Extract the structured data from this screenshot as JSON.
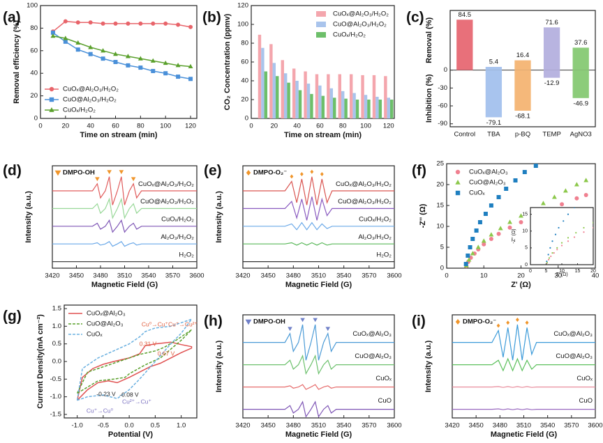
{
  "chart_data": [
    {
      "type": "line",
      "panel": "(a)",
      "xlabel": "Time on stream (min)",
      "ylabel": "Removal efficiency (%)",
      "x": [
        10,
        20,
        30,
        40,
        50,
        60,
        70,
        80,
        90,
        100,
        110,
        120
      ],
      "series": [
        {
          "name": "CuOₓ@Al₂O₃/H₂O₂",
          "color": "#e8646a",
          "marker": "circle",
          "values": [
            77,
            86,
            85,
            85,
            84,
            84,
            84,
            84,
            84,
            84,
            83,
            81
          ]
        },
        {
          "name": "CuO@Al₂O₃/H₂O₂",
          "color": "#4a90d9",
          "marker": "square",
          "values": [
            76,
            68,
            61,
            57,
            53,
            50,
            47,
            45,
            42,
            40,
            37,
            35
          ]
        },
        {
          "name": "CuOₓ/H₂O₂",
          "color": "#5aa02c",
          "marker": "triangle",
          "values": [
            73,
            71,
            67,
            63,
            60,
            57,
            55,
            53,
            51,
            49,
            47,
            46
          ]
        }
      ],
      "xlim": [
        0,
        125
      ],
      "xticks": [
        0,
        20,
        40,
        60,
        80,
        100,
        120
      ],
      "ylim": [
        0,
        100
      ],
      "yticks": [
        0,
        20,
        40,
        60,
        80,
        100
      ],
      "legend": "lower left"
    },
    {
      "type": "bar",
      "panel": "(b)",
      "xlabel": "Time on stream (min)",
      "ylabel": "CO₂ Concentration (ppmv)",
      "x": [
        10,
        20,
        30,
        40,
        50,
        60,
        70,
        80,
        90,
        100,
        110,
        120
      ],
      "series": [
        {
          "name": "CuOₓ@Al₂O₃/H₂O₂",
          "color": "#f4a6ad",
          "values": [
            89,
            79,
            62,
            53,
            50,
            47,
            47,
            47,
            47,
            46,
            46,
            45
          ]
        },
        {
          "name": "CuO@Al₂O₃/H₂O₂",
          "color": "#a9c4ec",
          "values": [
            75,
            59,
            48,
            40,
            37,
            35,
            32,
            29,
            27,
            25,
            23,
            22
          ]
        },
        {
          "name": "CuOₓ/H₂O₂",
          "color": "#6dbf6a",
          "values": [
            50,
            45,
            38,
            30,
            26,
            24,
            22,
            21,
            20,
            20,
            20,
            20
          ]
        }
      ],
      "xlim": [
        0,
        125
      ],
      "xticks": [
        0,
        20,
        40,
        60,
        80,
        100,
        120
      ],
      "ylim": [
        0,
        120
      ],
      "yticks": [
        0,
        20,
        40,
        60,
        80,
        100,
        120
      ],
      "legend": "upper right"
    },
    {
      "type": "bar",
      "panel": "(c)",
      "categories": [
        "Control",
        "TBA",
        "p-BQ",
        "TEMP",
        "AgNO3"
      ],
      "colors": [
        "#e8707a",
        "#a8c4ee",
        "#f5b87a",
        "#b8b4e0",
        "#8ccc7a"
      ],
      "series": [
        {
          "name": "Removal (%)",
          "values": [
            84.5,
            5.4,
            16.4,
            71.6,
            37.6
          ]
        },
        {
          "name": "Inhibition (%)",
          "values": [
            null,
            -79.1,
            -68.1,
            -12.9,
            -46.9
          ]
        }
      ],
      "ylim": [
        -95,
        100
      ],
      "yticks": [
        -90,
        -60,
        -30,
        0
      ]
    },
    {
      "type": "epr",
      "panel": "(d)",
      "xlabel": "Magnetic Field (G)",
      "ylabel": "Intensity (a.u.)",
      "annotation": "DMPO-OH",
      "x": [
        3420,
        3470,
        3476,
        3480,
        3486,
        3491,
        3495,
        3501,
        3506,
        3510,
        3516,
        3521,
        3525,
        3531,
        3600
      ],
      "series": [
        {
          "name": "CuOₓ@Al₂O₃/H₂O₂",
          "color": "#e05b5b",
          "values": [
            0,
            0,
            6,
            -6,
            0,
            12,
            -12,
            0,
            12,
            -12,
            0,
            6,
            -6,
            0,
            0
          ]
        },
        {
          "name": "CuO@Al₂O₃/H₂O₂",
          "color": "#98d898",
          "values": [
            0,
            0,
            4,
            -4,
            0,
            8,
            -8,
            0,
            8,
            -8,
            0,
            4,
            -4,
            0,
            0
          ]
        },
        {
          "name": "CuOₓ/H₂O₂",
          "color": "#7e55b5",
          "values": [
            0,
            0,
            2.5,
            -2.5,
            0,
            5,
            -5,
            0,
            5,
            -5,
            0,
            2.5,
            -2.5,
            0,
            0
          ]
        },
        {
          "name": "Al₂O₃/H₂O₂",
          "color": "#6aa8e8",
          "values": [
            0,
            0,
            1,
            -1,
            0,
            2,
            -2,
            0,
            2,
            -2,
            0,
            1,
            -1,
            0,
            0
          ]
        },
        {
          "name": "H₂O₂",
          "color": "#444444",
          "values": [
            0,
            0,
            0,
            0,
            0,
            0,
            0,
            0,
            0,
            0,
            0,
            0,
            0,
            0,
            0
          ]
        }
      ],
      "xlim": [
        3420,
        3600
      ],
      "xticks": [
        3420,
        3450,
        3480,
        3510,
        3540,
        3570,
        3600
      ]
    },
    {
      "type": "epr",
      "panel": "(e)",
      "xlabel": "Magnetic Field (G)",
      "ylabel": "Intensity (a.u.)",
      "annotation": "DMPO-O₂⁻",
      "x": [
        3420,
        3470,
        3478,
        3484,
        3490,
        3496,
        3502,
        3508,
        3514,
        3520,
        3526,
        3600
      ],
      "series": [
        {
          "name": "CuOₓ@Al₂O₃/H₂O₂",
          "color": "#d9534f",
          "values": [
            0,
            0,
            4,
            -5,
            5,
            -6,
            6,
            -6,
            5,
            -5,
            0,
            0
          ]
        },
        {
          "name": "CuO@Al₂O₃/H₂O₂",
          "color": "#8a5bc0",
          "values": [
            0,
            0,
            3,
            -4,
            4,
            -5,
            5,
            -5,
            4,
            -3,
            0,
            0
          ]
        },
        {
          "name": "CuOₓ/H₂O₂",
          "color": "#6aa8e8",
          "values": [
            0,
            0,
            1,
            -1.5,
            1.5,
            -1.5,
            1.5,
            -1.5,
            1,
            -1,
            0,
            0
          ]
        },
        {
          "name": "Al₂O₃/H₂O₂",
          "color": "#59b859",
          "values": [
            0,
            0,
            0.5,
            -0.5,
            0.5,
            -0.5,
            0.5,
            -0.5,
            0.5,
            -0.5,
            0,
            0
          ]
        },
        {
          "name": "H₂O₂",
          "color": "#333333",
          "values": [
            0,
            0,
            0,
            0,
            0,
            0,
            0,
            0,
            0,
            0,
            0,
            0
          ]
        }
      ],
      "xlim": [
        3420,
        3600
      ],
      "xticks": [
        3420,
        3450,
        3480,
        3510,
        3540,
        3570,
        3600
      ]
    },
    {
      "type": "scatter",
      "panel": "(f)",
      "xlabel": "Z' (Ω)",
      "ylabel": "-Z'' (Ω)",
      "series": [
        {
          "name": "CuOₓ@Al₂O₃",
          "color": "#f08090",
          "marker": "circle",
          "x": [
            5.3,
            5.8,
            6.5,
            7.5,
            8.5,
            10,
            12,
            14,
            17,
            20,
            23,
            27,
            31,
            35,
            37.5
          ],
          "values": [
            0.5,
            1.5,
            2.5,
            3.5,
            4.5,
            5.7,
            7,
            8.2,
            9.7,
            11,
            12.3,
            13.8,
            15.3,
            16.7,
            17.5
          ]
        },
        {
          "name": "CuO@Al₂O₃",
          "color": "#8cc84b",
          "marker": "triangle",
          "x": [
            5.3,
            6,
            7,
            8.5,
            10,
            12,
            14.5,
            17,
            20,
            23,
            26,
            29,
            32,
            35,
            37.5
          ],
          "values": [
            0.6,
            2,
            3.5,
            5,
            6.5,
            8,
            9.5,
            11,
            12.5,
            14,
            15.5,
            17,
            18.5,
            20,
            21
          ]
        },
        {
          "name": "CuOₓ",
          "color": "#1f7fc0",
          "marker": "square",
          "x": [
            5.2,
            5.7,
            6.3,
            7,
            8,
            9,
            10.5,
            12,
            14,
            16,
            18.5,
            21,
            24
          ],
          "values": [
            1,
            3,
            5,
            7,
            9,
            11,
            13,
            15,
            17,
            19,
            21,
            23,
            24.5
          ]
        }
      ],
      "xlim": [
        0,
        40
      ],
      "xticks": [
        0,
        10,
        20,
        30,
        40
      ],
      "ylim": [
        0,
        25
      ],
      "yticks": [
        0,
        5,
        10,
        15,
        20,
        25
      ],
      "legend": "upper left",
      "inset": {
        "xlabel": "Z' (Ω)",
        "ylabel": "-Z'' (Ω)",
        "xlim": [
          0,
          20
        ],
        "xticks": [
          0,
          5,
          10,
          15,
          20
        ],
        "ylim": [
          0,
          17
        ],
        "yticks": [
          0,
          5,
          10,
          15
        ]
      }
    },
    {
      "type": "line",
      "panel": "(g)",
      "xlabel": "Potential (V)",
      "ylabel": "Current Density(mA cm⁻²)",
      "series": [
        {
          "name": "CuOₓ@Al₂O₃",
          "color": "#e05050",
          "dash": false,
          "x": [
            -1,
            -0.9,
            -0.7,
            -0.5,
            -0.3,
            0,
            0.2,
            0.31,
            0.5,
            0.8,
            1.0,
            1.2,
            1.2,
            1.0,
            0.8,
            0.6,
            0.4,
            0.2,
            0,
            -0.23,
            -0.4,
            -0.6,
            -0.8,
            -1
          ],
          "values": [
            -1.1,
            -0.45,
            -0.2,
            -0.08,
            0,
            0.1,
            0.22,
            0.45,
            0.5,
            0.55,
            0.48,
            0.42,
            0.38,
            0.25,
            0.1,
            -0.05,
            -0.15,
            -0.3,
            -0.45,
            -0.6,
            -0.55,
            -0.6,
            -0.8,
            -1.1
          ]
        },
        {
          "name": "CuO@Al₂O₃",
          "color": "#5aa02c",
          "dash": true,
          "x": [
            -1,
            -0.8,
            -0.5,
            -0.2,
            0.2,
            0.5,
            0.67,
            0.9,
            1.2,
            1.0,
            0.6,
            0.3,
            0,
            -0.08,
            -0.3,
            -0.6,
            -1
          ],
          "values": [
            -0.9,
            -0.3,
            -0.15,
            0,
            0.2,
            0.3,
            0.4,
            0.6,
            0.9,
            0.6,
            0.1,
            -0.1,
            -0.35,
            -0.45,
            -0.5,
            -0.55,
            -0.9
          ]
        },
        {
          "name": "CuOₓ",
          "color": "#6ab0e0",
          "dash": true,
          "x": [
            -1,
            -0.9,
            -0.6,
            -0.3,
            0,
            0.2,
            0.31,
            0.5,
            0.8,
            1.2,
            1.0,
            0.8,
            0.5,
            0.2,
            0,
            -0.23,
            -0.5,
            -0.8,
            -1
          ],
          "values": [
            -1.1,
            -0.2,
            0.1,
            0.3,
            0.5,
            0.7,
            0.85,
            0.95,
            1.0,
            1.2,
            0.8,
            0.5,
            0,
            -0.5,
            -0.8,
            -1.05,
            -0.95,
            -1.0,
            -1.1
          ]
        }
      ],
      "annotations": [
        "0.31 V",
        "0.67 V",
        "-0.23 V",
        "-0.08 V",
        "Cu⁰→Cu⁺",
        "Cu⁺→Cu²⁺",
        "Cu²⁺→Cu⁺",
        "Cu⁺→Cu⁰"
      ],
      "xlim": [
        -1.25,
        1.3
      ],
      "xticks": [
        {
          "value": -1,
          "label": "-1.0"
        },
        {
          "value": -0.5,
          "label": "-0.5"
        },
        {
          "value": 0,
          "label": "0.0"
        },
        {
          "value": 0.5,
          "label": "0.5"
        },
        {
          "value": 1,
          "label": "1.0"
        }
      ],
      "ylim": [
        -1.6,
        1.6
      ],
      "yticks": [
        {
          "value": -1.5,
          "label": "-1.5"
        },
        {
          "value": -1,
          "label": "-1.0"
        },
        {
          "value": -0.5,
          "label": "-0.5"
        },
        {
          "value": 0,
          "label": "0.0"
        },
        {
          "value": 0.5,
          "label": "0.5"
        },
        {
          "value": 1,
          "label": "1.0"
        },
        {
          "value": 1.5,
          "label": "1.5"
        }
      ],
      "legend": "upper left"
    },
    {
      "type": "epr",
      "panel": "(h)",
      "xlabel": "Magnetic Field (G)",
      "ylabel": "Intensity (a.u.)",
      "annotation": "DMPO-OH",
      "x": [
        3420,
        3470,
        3476,
        3480,
        3486,
        3491,
        3495,
        3501,
        3506,
        3510,
        3516,
        3521,
        3525,
        3531,
        3600
      ],
      "series": [
        {
          "name": "CuOₓ@Al₂O₃",
          "color": "#4a9ad6",
          "values": [
            0,
            0,
            6,
            -6,
            0,
            12,
            -12,
            0,
            12,
            -12,
            0,
            6,
            -6,
            0,
            0
          ]
        },
        {
          "name": "CuO@Al₂O₃",
          "color": "#6cc06c",
          "values": [
            0,
            0,
            3,
            -3,
            0,
            6,
            -6,
            0,
            6,
            -6,
            0,
            3,
            -3,
            0,
            0
          ]
        },
        {
          "name": "CuOₓ",
          "color": "#e66a6a",
          "values": [
            0,
            0,
            0.8,
            -0.8,
            0,
            1.6,
            -1.6,
            0,
            1.6,
            -1.6,
            0,
            0.8,
            -0.8,
            0,
            0
          ]
        },
        {
          "name": "CuO",
          "color": "#7e55b5",
          "values": [
            0,
            0,
            2.5,
            -2.5,
            0,
            5,
            -5,
            0,
            5,
            -5,
            0,
            2.5,
            -2.5,
            0,
            0
          ]
        }
      ],
      "xlim": [
        3420,
        3600
      ],
      "xticks": [
        3420,
        3450,
        3480,
        3510,
        3540,
        3570,
        3600
      ]
    },
    {
      "type": "epr",
      "panel": "(i)",
      "xlabel": "Magnetic Field (G)",
      "ylabel": "Intensity (a.u.)",
      "annotation": "DMPO-O₂⁻",
      "x": [
        3420,
        3470,
        3478,
        3484,
        3490,
        3496,
        3502,
        3508,
        3514,
        3520,
        3526,
        3600
      ],
      "series": [
        {
          "name": "CuOₓ@Al₂O₃",
          "color": "#3a9ad9",
          "values": [
            0,
            0,
            8,
            -10,
            10,
            -12,
            12,
            -12,
            10,
            -8,
            0,
            0
          ]
        },
        {
          "name": "CuO@Al₂O₃",
          "color": "#5cc05c",
          "values": [
            0,
            0,
            3,
            -4,
            4,
            -4,
            4,
            -4,
            3,
            -3,
            0,
            0
          ]
        },
        {
          "name": "CuOₓ",
          "color": "#e88a9a",
          "values": [
            0,
            0,
            0.3,
            -0.3,
            0.3,
            -0.3,
            0.3,
            -0.3,
            0.3,
            -0.3,
            0,
            0
          ]
        },
        {
          "name": "CuO",
          "color": "#9a6ac0",
          "values": [
            0,
            0,
            0.3,
            -0.3,
            0.3,
            -0.3,
            0.3,
            -0.3,
            0.3,
            -0.3,
            0,
            0
          ]
        }
      ],
      "xlim": [
        3420,
        3600
      ],
      "xticks": [
        3420,
        3450,
        3480,
        3510,
        3540,
        3570,
        3600
      ]
    }
  ]
}
